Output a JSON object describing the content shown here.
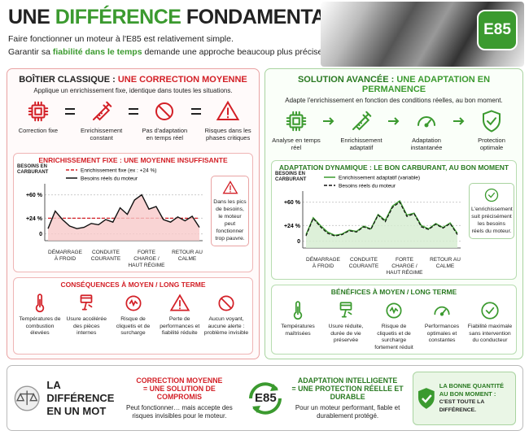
{
  "header": {
    "title_start": "UNE ",
    "title_highlight": "DIFFÉRENCE",
    "title_end": " FONDAMENTALE",
    "line1": "Faire fonctionner un moteur à l'E85 est relativement simple.",
    "line2_start": "Garantir sa ",
    "line2_highlight": "fiabilité dans le temps",
    "line2_end": " demande une approche beaucoup plus précise.",
    "badge": "E85"
  },
  "left": {
    "title": "BOÎTIER CLASSIQUE : ",
    "title_highlight": "UNE CORRECTION MOYENNE",
    "subtitle": "Applique un enrichissement fixe, identique dans toutes les situations.",
    "steps": [
      "Correction fixe",
      "Enrichissement constant",
      "Pas d'adaptation en temps réel",
      "Risques dans les phases critiques"
    ],
    "chart": {
      "type": "line",
      "title": "ENRICHISSEMENT FIXE : UNE MOYENNE INSUFFISANTE",
      "y_label": "BESOINS EN CARBURANT",
      "ylim": [
        -8,
        72
      ],
      "yticks": [
        {
          "value": 60,
          "label": "+60 %"
        },
        {
          "value": 24,
          "label": "+24 %"
        },
        0
      ],
      "x_labels": [
        "DÉMARRAGE À FROID",
        "CONDUITE COURANTE",
        "FORTE CHARGE / HAUT RÉGIME",
        "RETOUR AU CALME"
      ],
      "series": [
        {
          "name": "Enrichissement fixe (ex : +24 %)",
          "color": "#d32027",
          "dashed": true,
          "values": [
            24,
            24,
            24,
            24,
            24,
            24,
            24,
            24,
            24,
            24,
            24,
            24,
            24,
            24,
            24,
            24,
            24,
            24,
            24,
            24,
            24,
            24
          ]
        },
        {
          "name": "Besoins réels du moteur",
          "color": "#111111",
          "fill": "#f7c9c9",
          "values": [
            8,
            35,
            22,
            12,
            8,
            10,
            16,
            14,
            22,
            18,
            40,
            30,
            52,
            60,
            38,
            42,
            22,
            18,
            26,
            20,
            27,
            10
          ]
        }
      ],
      "note": "Dans les pics de besoins, le moteur peut fonctionner trop pauvre."
    },
    "consequences": {
      "title": "CONSÉQUENCES À MOYEN / LONG TERME",
      "items": [
        "Températures de combustion élevées",
        "Usure accélérée des pièces internes",
        "Risque de cliquetis et de surcharge",
        "Perte de performances et fiabilité réduite",
        "Aucun voyant, aucune alerte : problème invisible"
      ]
    }
  },
  "right": {
    "title": "SOLUTION AVANCÉE : ",
    "title_highlight": "UNE ADAPTATION EN PERMANENCE",
    "subtitle": "Adapte l'enrichissement en fonction des conditions réelles, au bon moment.",
    "steps": [
      "Analyse en temps réel",
      "Enrichissement adaptatif",
      "Adaptation instantanée",
      "Protection optimale"
    ],
    "chart": {
      "type": "line",
      "title": "ADAPTATION DYNAMIQUE : LE BON CARBURANT, AU BON MOMENT",
      "y_label": "BESOINS EN CARBURANT",
      "ylim": [
        -8,
        72
      ],
      "yticks": [
        {
          "value": 60,
          "label": "+60 %"
        },
        {
          "value": 24,
          "label": "+24 %"
        },
        0
      ],
      "x_labels": [
        "DÉMARRAGE À FROID",
        "CONDUITE COURANTE",
        "FORTE CHARGE / HAUT RÉGIME",
        "RETOUR AU CALME"
      ],
      "series": [
        {
          "name": "Enrichissement adaptatif (variable)",
          "color": "#3b9a2f",
          "fill": "#d5ecd0",
          "values": [
            10,
            36,
            24,
            14,
            9,
            11,
            17,
            15,
            23,
            19,
            41,
            32,
            54,
            62,
            40,
            43,
            24,
            19,
            27,
            21,
            28,
            12
          ]
        },
        {
          "name": "Besoins réels du moteur",
          "color": "#111111",
          "dashed": true,
          "values": [
            8,
            35,
            22,
            12,
            8,
            10,
            16,
            14,
            22,
            18,
            40,
            30,
            52,
            60,
            38,
            42,
            22,
            18,
            26,
            20,
            27,
            10
          ]
        }
      ],
      "note": "L'enrichissement suit précisément les besoins réels du moteur."
    },
    "consequences": {
      "title": "BÉNÉFICES À MOYEN / LONG TERME",
      "items": [
        "Températures maîtrisées",
        "Usure réduite, durée de vie préservée",
        "Risque de cliquetis et de surcharge fortement réduit",
        "Performances optimales et constantes",
        "Fiabilité maximale sans intervention du conducteur"
      ]
    }
  },
  "footer": {
    "heading": "LA DIFFÉRENCE EN UN MOT",
    "left_title": "CORRECTION MOYENNE",
    "left_subtitle": "= UNE SOLUTION DE COMPROMIS",
    "left_text": "Peut fonctionner… mais accepte des risques invisibles pour le moteur.",
    "badge": "E85",
    "right_title": "ADAPTATION INTELLIGENTE",
    "right_subtitle": "= UNE PROTECTION RÉELLE ET DURABLE",
    "right_text": "Pour un moteur performant, fiable et durablement protégé.",
    "conclusion_1": "LA BONNE QUANTITÉ AU BON MOMENT :",
    "conclusion_2": "C'EST TOUTE LA DIFFÉRENCE."
  }
}
